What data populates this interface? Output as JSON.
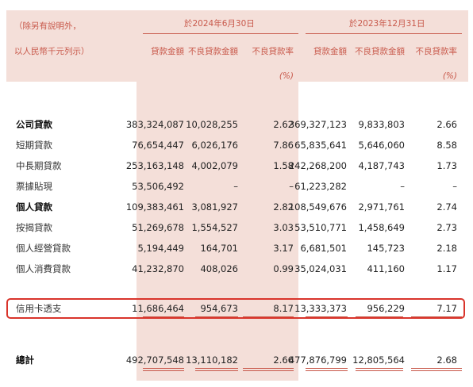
{
  "header": {
    "note_line1": "（除另有說明外，",
    "note_line2": "以人民幣千元列示）",
    "period_2024": "於2024年6月30日",
    "period_2023": "於2023年12月31日",
    "columns": [
      "貸款金額",
      "不良貸款金額",
      "不良貸款率",
      "貸款金額",
      "不良貸款金額",
      "不良貸款率"
    ],
    "pct_unit": "(%)"
  },
  "rows": [
    {
      "label": "公司貸款",
      "bold": true,
      "values": [
        "383,324,087",
        "10,028,255",
        "2.62",
        "369,327,123",
        "9,833,803",
        "2.66"
      ]
    },
    {
      "label": "短期貸款",
      "bold": false,
      "values": [
        "76,654,447",
        "6,026,176",
        "7.86",
        "65,835,641",
        "5,646,060",
        "8.58"
      ]
    },
    {
      "label": "中長期貸款",
      "bold": false,
      "values": [
        "253,163,148",
        "4,002,079",
        "1.58",
        "242,268,200",
        "4,187,743",
        "1.73"
      ]
    },
    {
      "label": "票據貼現",
      "bold": false,
      "values": [
        "53,506,492",
        "–",
        "–",
        "61,223,282",
        "–",
        "–"
      ]
    },
    {
      "label": "個人貸款",
      "bold": true,
      "values": [
        "109,383,461",
        "3,081,927",
        "2.82",
        "108,549,676",
        "2,971,761",
        "2.74"
      ]
    },
    {
      "label": "按揭貸款",
      "bold": false,
      "values": [
        "51,269,678",
        "1,554,527",
        "3.03",
        "53,510,771",
        "1,458,649",
        "2.73"
      ]
    },
    {
      "label": "個人經營貸款",
      "bold": false,
      "values": [
        "5,194,449",
        "164,701",
        "3.17",
        "6,681,501",
        "145,723",
        "2.18"
      ]
    },
    {
      "label": "個人消費貸款",
      "bold": false,
      "values": [
        "41,232,870",
        "408,026",
        "0.99",
        "35,024,031",
        "411,160",
        "1.17"
      ]
    },
    {
      "label": "信用卡透支",
      "bold": false,
      "values": [
        "11,686,464",
        "954,673",
        "8.17",
        "13,333,373",
        "956,229",
        "7.17"
      ]
    }
  ],
  "total": {
    "label": "總計",
    "values": [
      "492,707,548",
      "13,110,182",
      "2.66",
      "477,876,799",
      "12,805,564",
      "2.68"
    ]
  },
  "colors": {
    "accent": "#c8584a",
    "shade": "#f4dfd9",
    "highlight_border": "#d9342b"
  }
}
